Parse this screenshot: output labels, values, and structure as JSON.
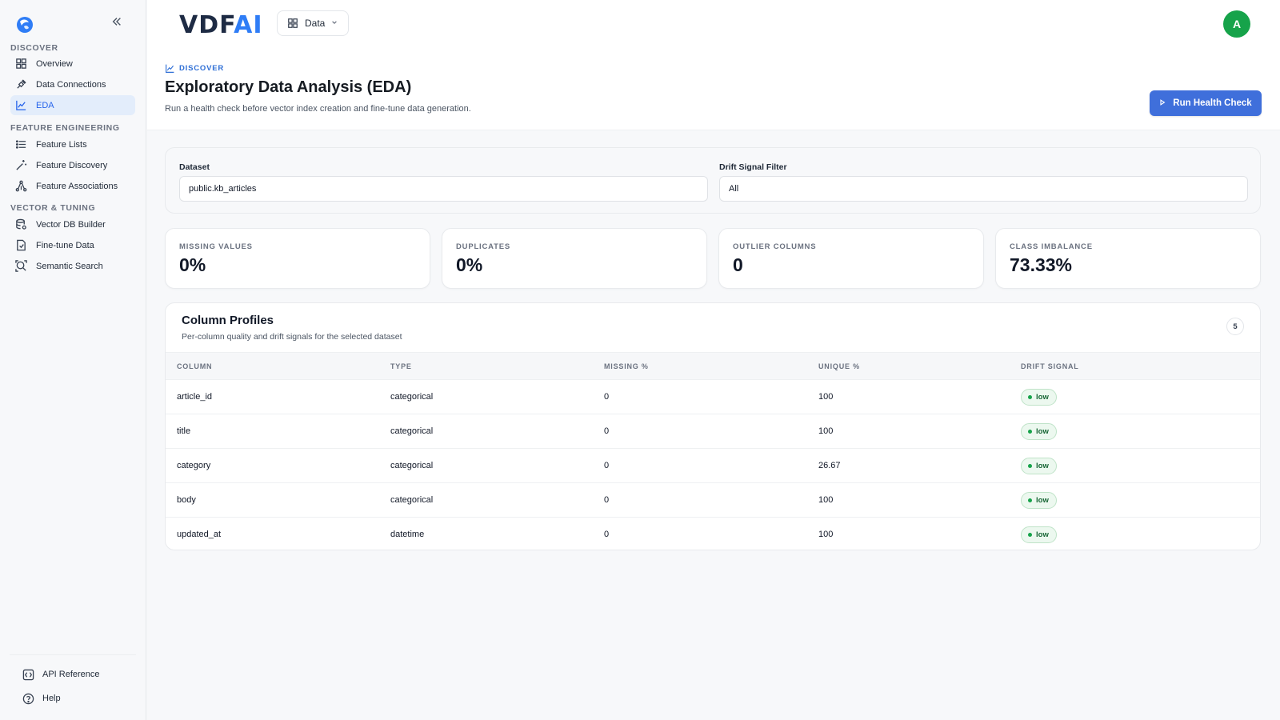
{
  "sidebar": {
    "sections": [
      {
        "label": "DISCOVER",
        "items": [
          {
            "label": "Overview",
            "icon": "grid-icon"
          },
          {
            "label": "Data Connections",
            "icon": "plug-icon"
          },
          {
            "label": "EDA",
            "icon": "chart-icon",
            "active": true
          }
        ]
      },
      {
        "label": "FEATURE ENGINEERING",
        "items": [
          {
            "label": "Feature Lists",
            "icon": "list-icon"
          },
          {
            "label": "Feature Discovery",
            "icon": "wand-icon"
          },
          {
            "label": "Feature Associations",
            "icon": "network-icon"
          }
        ]
      },
      {
        "label": "VECTOR & TUNING",
        "items": [
          {
            "label": "Vector DB Builder",
            "icon": "database-icon"
          },
          {
            "label": "Fine-tune Data",
            "icon": "file-icon"
          },
          {
            "label": "Semantic Search",
            "icon": "search-icon"
          }
        ]
      }
    ],
    "footer": [
      {
        "label": "API Reference",
        "icon": "code-icon"
      },
      {
        "label": "Help",
        "icon": "help-icon"
      }
    ]
  },
  "header": {
    "brand_main": "VDF",
    "brand_accent": "AI",
    "workspace": "Data",
    "avatar_initial": "A",
    "eyebrow": "DISCOVER",
    "title": "Exploratory Data Analysis (EDA)",
    "subtitle": "Run a health check before vector index creation and fine-tune data generation.",
    "run_button": "Run Health Check"
  },
  "filters": {
    "dataset_label": "Dataset",
    "dataset_value": "public.kb_articles",
    "drift_label": "Drift Signal Filter",
    "drift_value": "All"
  },
  "kpis": [
    {
      "label": "MISSING VALUES",
      "value": "0%"
    },
    {
      "label": "DUPLICATES",
      "value": "0%"
    },
    {
      "label": "OUTLIER COLUMNS",
      "value": "0"
    },
    {
      "label": "CLASS IMBALANCE",
      "value": "73.33%"
    }
  ],
  "profiles": {
    "title": "Column Profiles",
    "subtitle": "Per-column quality and drift signals for the selected dataset",
    "count": "5",
    "headers": [
      "COLUMN",
      "TYPE",
      "MISSING %",
      "UNIQUE %",
      "DRIFT SIGNAL"
    ],
    "rows": [
      {
        "column": "article_id",
        "type": "categorical",
        "missing": "0",
        "unique": "100",
        "drift": "low"
      },
      {
        "column": "title",
        "type": "categorical",
        "missing": "0",
        "unique": "100",
        "drift": "low"
      },
      {
        "column": "category",
        "type": "categorical",
        "missing": "0",
        "unique": "26.67",
        "drift": "low"
      },
      {
        "column": "body",
        "type": "categorical",
        "missing": "0",
        "unique": "100",
        "drift": "low"
      },
      {
        "column": "updated_at",
        "type": "datetime",
        "missing": "0",
        "unique": "100",
        "drift": "low"
      }
    ]
  },
  "colors": {
    "accent": "#3f6fdb",
    "active_bg": "#e3edfb",
    "avatar": "#16a34a",
    "badge_green": "#16a34a"
  }
}
